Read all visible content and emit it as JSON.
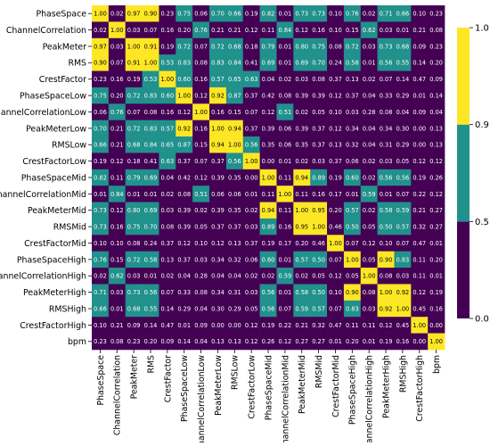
{
  "chart_data": {
    "type": "heatmap",
    "title": "",
    "xlabel": "",
    "ylabel": "",
    "labels": [
      "PhaseSpace",
      "ChannelCorrelation",
      "PeakMeter",
      "RMS",
      "CrestFactor",
      "PhaseSpaceLow",
      "ChannelCorrelationLow",
      "PeakMeterLow",
      "RMSLow",
      "CrestFactorLow",
      "PhaseSpaceMid",
      "ChannelCorrelationMid",
      "PeakMeterMid",
      "RMSMid",
      "CrestFactorMid",
      "PhaseSpaceHigh",
      "ChannelCorrelationHigh",
      "PeakMeterHigh",
      "RMSHigh",
      "CrestFactorHigh",
      "bpm"
    ],
    "matrix": [
      [
        1.0,
        0.02,
        0.97,
        0.9,
        0.23,
        0.75,
        0.06,
        0.7,
        0.66,
        0.19,
        0.82,
        0.01,
        0.73,
        0.73,
        0.1,
        0.76,
        0.02,
        0.71,
        0.66,
        0.1,
        0.23
      ],
      [
        0.02,
        1.0,
        0.03,
        0.07,
        0.16,
        0.2,
        0.76,
        0.21,
        0.21,
        0.12,
        0.11,
        0.84,
        0.12,
        0.16,
        0.1,
        0.15,
        0.62,
        0.03,
        0.01,
        0.21,
        0.08
      ],
      [
        0.97,
        0.03,
        1.0,
        0.91,
        0.19,
        0.72,
        0.07,
        0.72,
        0.68,
        0.18,
        0.79,
        0.01,
        0.8,
        0.75,
        0.08,
        0.72,
        0.03,
        0.73,
        0.68,
        0.09,
        0.23
      ],
      [
        0.9,
        0.07,
        0.91,
        1.0,
        0.53,
        0.83,
        0.08,
        0.83,
        0.84,
        0.41,
        0.69,
        0.01,
        0.69,
        0.7,
        0.24,
        0.58,
        0.01,
        0.56,
        0.55,
        0.14,
        0.2
      ],
      [
        0.23,
        0.16,
        0.19,
        0.53,
        1.0,
        0.6,
        0.16,
        0.57,
        0.65,
        0.63,
        0.04,
        0.02,
        0.03,
        0.08,
        0.37,
        0.13,
        0.02,
        0.07,
        0.14,
        0.47,
        0.09
      ],
      [
        0.75,
        0.2,
        0.72,
        0.83,
        0.6,
        1.0,
        0.12,
        0.92,
        0.87,
        0.37,
        0.42,
        0.08,
        0.39,
        0.39,
        0.12,
        0.37,
        0.04,
        0.33,
        0.29,
        0.01,
        0.14
      ],
      [
        0.06,
        0.76,
        0.07,
        0.08,
        0.16,
        0.12,
        1.0,
        0.16,
        0.15,
        0.07,
        0.12,
        0.51,
        0.02,
        0.05,
        0.1,
        0.03,
        0.28,
        0.08,
        0.04,
        0.09,
        0.04
      ],
      [
        0.7,
        0.21,
        0.72,
        0.83,
        0.57,
        0.92,
        0.16,
        1.0,
        0.94,
        0.37,
        0.39,
        0.06,
        0.39,
        0.37,
        0.12,
        0.34,
        0.04,
        0.34,
        0.3,
        0.0,
        0.13
      ],
      [
        0.66,
        0.21,
        0.68,
        0.84,
        0.65,
        0.87,
        0.15,
        0.94,
        1.0,
        0.56,
        0.35,
        0.06,
        0.35,
        0.37,
        0.13,
        0.32,
        0.04,
        0.31,
        0.29,
        0.0,
        0.13
      ],
      [
        0.19,
        0.12,
        0.18,
        0.41,
        0.63,
        0.37,
        0.07,
        0.37,
        0.56,
        1.0,
        0.0,
        0.01,
        0.02,
        0.03,
        0.37,
        0.06,
        0.02,
        0.03,
        0.05,
        0.12,
        0.12
      ],
      [
        0.82,
        0.11,
        0.79,
        0.69,
        0.04,
        0.42,
        0.12,
        0.39,
        0.35,
        0.0,
        1.0,
        0.11,
        0.94,
        0.89,
        0.19,
        0.6,
        0.02,
        0.56,
        0.56,
        0.19,
        0.26
      ],
      [
        0.01,
        0.84,
        0.01,
        0.01,
        0.02,
        0.08,
        0.51,
        0.06,
        0.06,
        0.01,
        0.11,
        1.0,
        0.11,
        0.16,
        0.17,
        0.01,
        0.59,
        0.01,
        0.07,
        0.22,
        0.12
      ],
      [
        0.73,
        0.12,
        0.8,
        0.69,
        0.03,
        0.39,
        0.02,
        0.39,
        0.35,
        0.02,
        0.94,
        0.11,
        1.0,
        0.95,
        0.2,
        0.57,
        0.02,
        0.58,
        0.59,
        0.21,
        0.27
      ],
      [
        0.73,
        0.16,
        0.75,
        0.7,
        0.08,
        0.39,
        0.05,
        0.37,
        0.37,
        0.03,
        0.89,
        0.16,
        0.95,
        1.0,
        0.46,
        0.5,
        0.05,
        0.5,
        0.57,
        0.32,
        0.27
      ],
      [
        0.1,
        0.1,
        0.08,
        0.24,
        0.37,
        0.12,
        0.1,
        0.12,
        0.13,
        0.37,
        0.19,
        0.17,
        0.2,
        0.46,
        1.0,
        0.07,
        0.12,
        0.1,
        0.07,
        0.47,
        0.01
      ],
      [
        0.76,
        0.15,
        0.72,
        0.58,
        0.13,
        0.37,
        0.03,
        0.34,
        0.32,
        0.06,
        0.6,
        0.01,
        0.57,
        0.5,
        0.07,
        1.0,
        0.05,
        0.9,
        0.83,
        0.11,
        0.2
      ],
      [
        0.02,
        0.62,
        0.03,
        0.01,
        0.02,
        0.04,
        0.28,
        0.04,
        0.04,
        0.02,
        0.02,
        0.59,
        0.02,
        0.05,
        0.12,
        0.05,
        1.0,
        0.08,
        0.03,
        0.11,
        0.01
      ],
      [
        0.71,
        0.03,
        0.73,
        0.56,
        0.07,
        0.33,
        0.08,
        0.34,
        0.31,
        0.03,
        0.56,
        0.01,
        0.58,
        0.5,
        0.1,
        0.9,
        0.08,
        1.0,
        0.92,
        0.12,
        0.19
      ],
      [
        0.66,
        0.01,
        0.68,
        0.55,
        0.14,
        0.29,
        0.04,
        0.3,
        0.29,
        0.05,
        0.56,
        0.07,
        0.59,
        0.57,
        0.07,
        0.83,
        0.03,
        0.92,
        1.0,
        0.45,
        0.16
      ],
      [
        0.1,
        0.21,
        0.09,
        0.14,
        0.47,
        0.01,
        0.09,
        0.0,
        0.0,
        0.12,
        0.19,
        0.22,
        0.21,
        0.32,
        0.47,
        0.11,
        0.11,
        0.12,
        0.45,
        1.0,
        0.0
      ],
      [
        0.23,
        0.08,
        0.23,
        0.2,
        0.09,
        0.14,
        0.04,
        0.13,
        0.13,
        0.12,
        0.26,
        0.12,
        0.27,
        0.27,
        0.01,
        0.2,
        0.01,
        0.19,
        0.16,
        0.0,
        1.0
      ]
    ],
    "colorbar": {
      "ticks": [
        "0.0",
        "0.5",
        "0.9",
        "1.0"
      ],
      "bins": [
        {
          "min": 0.0,
          "max": 0.5,
          "color": "#440154"
        },
        {
          "min": 0.5,
          "max": 0.9,
          "color": "#21918c"
        },
        {
          "min": 0.9,
          "max": 1.0,
          "color": "#fde725"
        }
      ]
    },
    "text_colors": {
      "on_dark": "#ffffff",
      "on_light": "#000000"
    },
    "legend": "right"
  }
}
